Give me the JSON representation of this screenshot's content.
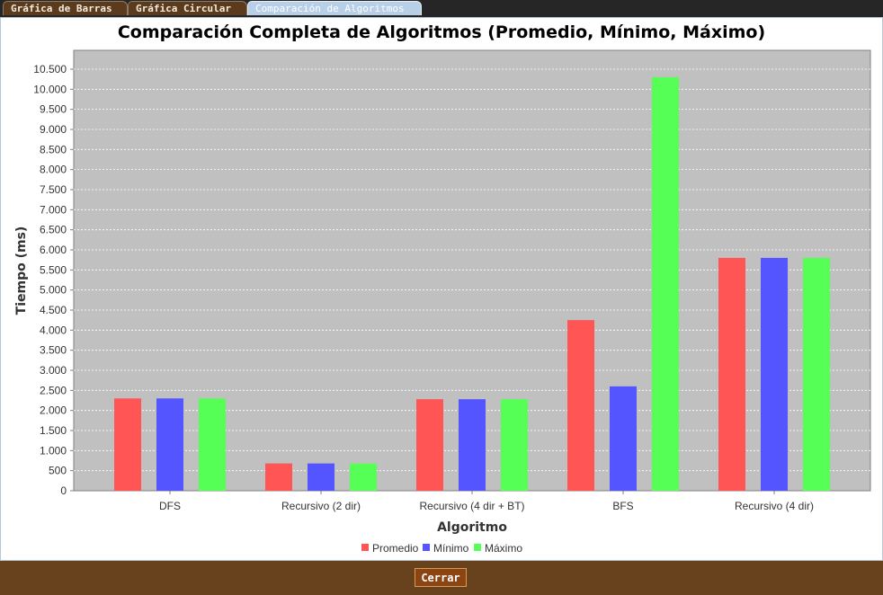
{
  "tabs": [
    {
      "label": "Gráfica de Barras",
      "active": false
    },
    {
      "label": "Gráfica Circular",
      "active": false
    },
    {
      "label": "Comparación de Algoritmos",
      "active": true
    }
  ],
  "footer": {
    "close_label": "Cerrar"
  },
  "chart_data": {
    "type": "bar",
    "title": "Comparación Completa de Algoritmos (Promedio, Mínimo, Máximo)",
    "xlabel": "Algoritmo",
    "ylabel": "Tiempo (ms)",
    "categories": [
      "DFS",
      "Recursivo (2 dir)",
      "Recursivo (4 dir + BT)",
      "BFS",
      "Recursivo (4 dir)"
    ],
    "series": [
      {
        "name": "Promedio",
        "color": "#ff5555",
        "values": [
          2300,
          680,
          2280,
          4250,
          5800
        ]
      },
      {
        "name": "Mínimo",
        "color": "#5555ff",
        "values": [
          2300,
          680,
          2280,
          2600,
          5800
        ]
      },
      {
        "name": "Máximo",
        "color": "#55ff55",
        "values": [
          2300,
          680,
          2280,
          10300,
          5800
        ]
      }
    ],
    "ylim": [
      0,
      10970
    ],
    "yticks": [
      0,
      500,
      1000,
      1500,
      2000,
      2500,
      3000,
      3500,
      4000,
      4500,
      5000,
      5500,
      6000,
      6500,
      7000,
      7500,
      8000,
      8500,
      9000,
      9500,
      10000,
      10500
    ],
    "ytick_labels": [
      "0",
      "500",
      "1.000",
      "1.500",
      "2.000",
      "2.500",
      "3.000",
      "3.500",
      "4.000",
      "4.500",
      "5.000",
      "5.500",
      "6.000",
      "6.500",
      "7.000",
      "7.500",
      "8.000",
      "8.500",
      "9.000",
      "9.500",
      "10.000",
      "10.500"
    ],
    "grid": true,
    "plot_background": "#c0c0c0",
    "legend_position": "bottom"
  }
}
